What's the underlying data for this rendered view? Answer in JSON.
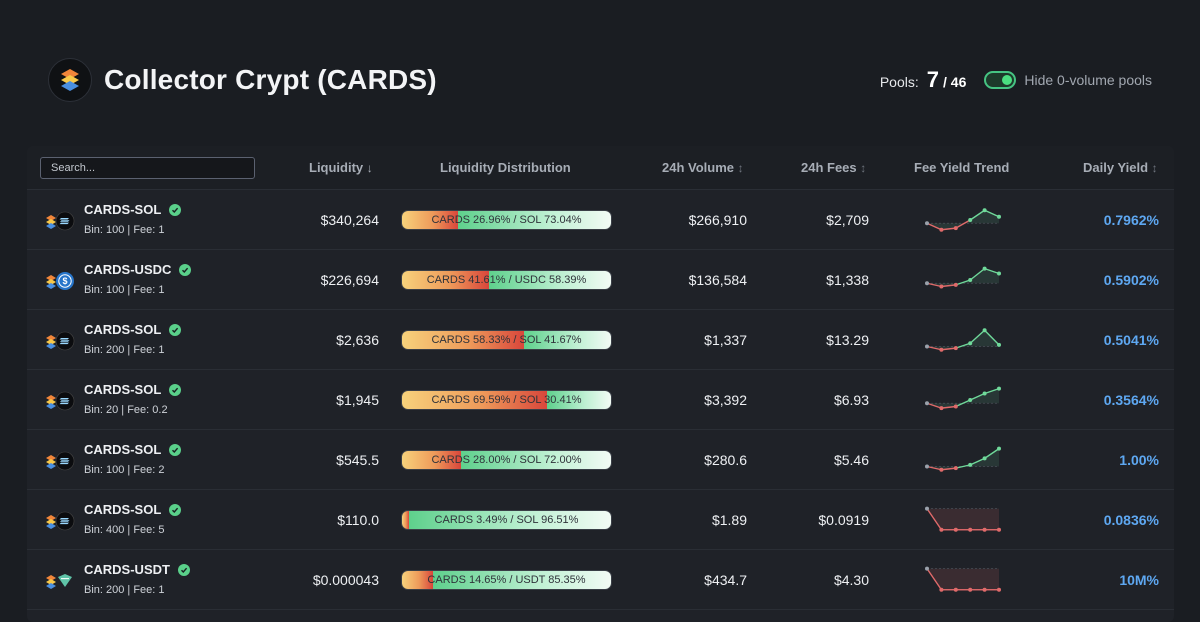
{
  "header": {
    "title": "Collector Crypt (CARDS)",
    "pools_label": "Pools:",
    "pools_count": "7",
    "pools_total": "/ 46",
    "toggle_label": "Hide 0-volume pools",
    "toggle_on": true
  },
  "table": {
    "search_placeholder": "Search...",
    "columns": {
      "liquidity": "Liquidity",
      "distribution": "Liquidity Distribution",
      "volume": "24h Volume",
      "fees": "24h Fees",
      "trend": "Fee Yield Trend",
      "yield": "Daily Yield"
    },
    "rows": [
      {
        "pair": "CARDS-SOL",
        "quote_icon": "solana-icon",
        "meta": "Bin: 100 | Fee: 1",
        "liquidity": "$340,264",
        "dist_a": 26.96,
        "dist_label": "CARDS 26.96% / SOL 73.04%",
        "volume": "$266,910",
        "fees": "$2,709",
        "trend": [
          3,
          1,
          1.5,
          4,
          7,
          5
        ],
        "yield": "0.7962%"
      },
      {
        "pair": "CARDS-USDC",
        "quote_icon": "usdc-icon",
        "meta": "Bin: 100 | Fee: 1",
        "liquidity": "$226,694",
        "dist_a": 41.61,
        "dist_label": "CARDS 41.61% / USDC 58.39%",
        "volume": "$136,584",
        "fees": "$1,338",
        "trend": [
          3,
          2,
          2.5,
          4,
          7.5,
          6
        ],
        "yield": "0.5902%"
      },
      {
        "pair": "CARDS-SOL",
        "quote_icon": "solana-icon",
        "meta": "Bin: 200 | Fee: 1",
        "liquidity": "$2,636",
        "dist_a": 58.33,
        "dist_label": "CARDS 58.33% / SOL 41.67%",
        "volume": "$1,337",
        "fees": "$13.29",
        "trend": [
          2,
          1,
          1.5,
          3,
          7,
          2.5
        ],
        "yield": "0.5041%"
      },
      {
        "pair": "CARDS-SOL",
        "quote_icon": "solana-icon",
        "meta": "Bin: 20 | Fee: 0.2",
        "liquidity": "$1,945",
        "dist_a": 69.59,
        "dist_label": "CARDS 69.59% / SOL 30.41%",
        "volume": "$3,392",
        "fees": "$6.93",
        "trend": [
          3,
          1.5,
          2,
          4,
          6,
          7.5
        ],
        "yield": "0.3564%"
      },
      {
        "pair": "CARDS-SOL",
        "quote_icon": "solana-icon",
        "meta": "Bin: 100 | Fee: 2",
        "liquidity": "$545.5",
        "dist_a": 28.0,
        "dist_label": "CARDS 28.00% / SOL 72.00%",
        "volume": "$280.6",
        "fees": "$5.46",
        "trend": [
          2,
          1,
          1.5,
          2.5,
          4.5,
          7.5
        ],
        "yield": "1.00%"
      },
      {
        "pair": "CARDS-SOL",
        "quote_icon": "solana-icon",
        "meta": "Bin: 400 | Fee: 5",
        "liquidity": "$110.0",
        "dist_a": 3.49,
        "dist_label": "CARDS 3.49% / SOL 96.51%",
        "volume": "$1.89",
        "fees": "$0.0919",
        "trend": [
          7.5,
          1,
          1,
          1,
          1,
          1
        ],
        "yield": "0.0836%"
      },
      {
        "pair": "CARDS-USDT",
        "quote_icon": "usdt-icon",
        "meta": "Bin: 200 | Fee: 1",
        "liquidity": "$0.000043",
        "dist_a": 14.65,
        "dist_label": "CARDS 14.65% / USDT 85.35%",
        "volume": "$434.7",
        "fees": "$4.30",
        "trend": [
          7.5,
          1,
          1,
          1,
          1,
          1
        ],
        "yield": "10M%"
      }
    ]
  },
  "colors": {
    "accent_green": "#4ade80",
    "yield_blue": "#5ea8f2",
    "trend_up": "#6fd99a",
    "trend_down": "#e06a6a"
  }
}
